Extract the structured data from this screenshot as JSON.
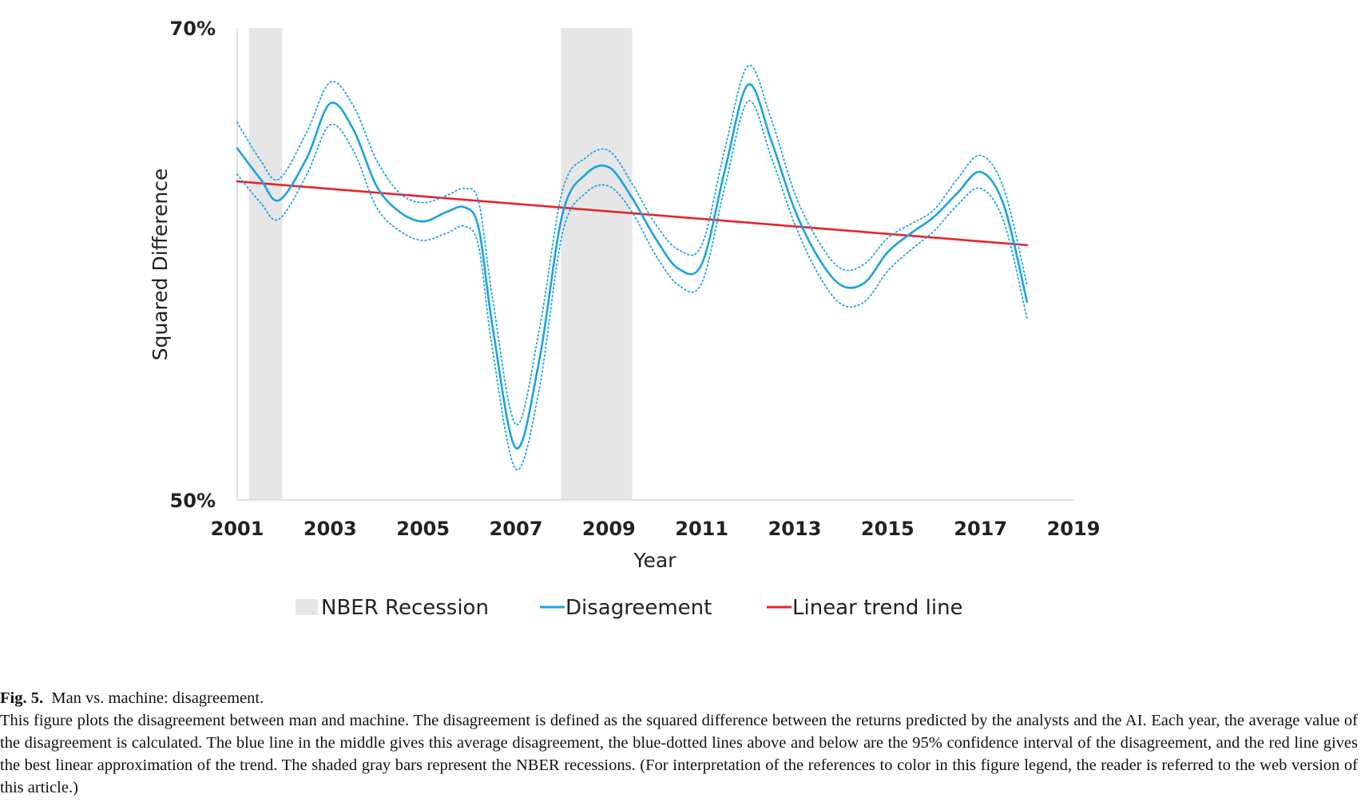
{
  "chart_data": {
    "type": "line",
    "ylabel": "Squared Difference",
    "xlabel": "Year",
    "y_tick_labels": [
      "70%",
      "50%"
    ],
    "ylim": [
      50,
      70
    ],
    "xlim": [
      2001,
      2019
    ],
    "x_tick_labels": [
      "2001",
      "2003",
      "2005",
      "2007",
      "2009",
      "2011",
      "2013",
      "2015",
      "2017",
      "2019"
    ],
    "x_ticks": [
      2001,
      2003,
      2005,
      2007,
      2009,
      2011,
      2013,
      2015,
      2017,
      2019
    ],
    "grid": false,
    "recessions": [
      {
        "start": 2001.25,
        "end": 2001.97
      },
      {
        "start": 2007.97,
        "end": 2009.5
      }
    ],
    "series": [
      {
        "name": "Disagreement",
        "color": "#1aa3e0",
        "style": "solid",
        "x": [
          2001,
          2001.5,
          2001.9,
          2002.5,
          2003,
          2003.5,
          2004,
          2004.5,
          2005,
          2005.5,
          2005.9,
          2006.2,
          2006.5,
          2007,
          2007.5,
          2008,
          2008.5,
          2009,
          2009.5,
          2010,
          2010.5,
          2011,
          2011.5,
          2012,
          2012.5,
          2013,
          2013.5,
          2014,
          2014.5,
          2015,
          2015.5,
          2016,
          2016.5,
          2017,
          2017.5,
          2018
        ],
        "values": [
          64.9,
          63.6,
          62.7,
          64.5,
          66.8,
          65.7,
          63.3,
          62.2,
          61.8,
          62.2,
          62.4,
          61.5,
          57.3,
          52.2,
          55.9,
          62.1,
          63.8,
          64.1,
          62.8,
          61.1,
          59.8,
          60.0,
          64.0,
          67.6,
          65.2,
          62.3,
          60.3,
          59.1,
          59.2,
          60.5,
          61.3,
          62.0,
          63.0,
          63.9,
          62.5,
          58.4
        ]
      },
      {
        "name": "",
        "color": "#1aa3e0",
        "style": "dotted",
        "x": [
          2001,
          2001.5,
          2001.9,
          2002.5,
          2003,
          2003.5,
          2004,
          2004.5,
          2005,
          2005.5,
          2005.9,
          2006.2,
          2006.5,
          2007,
          2007.5,
          2008,
          2008.5,
          2009,
          2009.5,
          2010,
          2010.5,
          2011,
          2011.5,
          2012,
          2012.5,
          2013,
          2013.5,
          2014,
          2014.5,
          2015,
          2015.5,
          2016,
          2016.5,
          2017,
          2017.5,
          2018
        ],
        "values": [
          66.0,
          64.4,
          63.6,
          65.6,
          67.7,
          66.7,
          64.4,
          63.0,
          62.6,
          62.9,
          63.2,
          62.6,
          58.5,
          53.2,
          57.2,
          63.1,
          64.5,
          64.8,
          63.4,
          61.7,
          60.6,
          60.8,
          64.9,
          68.4,
          66.1,
          63.0,
          61.0,
          59.8,
          60.0,
          61.1,
          61.7,
          62.3,
          63.6,
          64.6,
          63.2,
          59.1
        ]
      },
      {
        "name": "",
        "color": "#1aa3e0",
        "style": "dotted",
        "x": [
          2001,
          2001.5,
          2001.9,
          2002.5,
          2003,
          2003.5,
          2004,
          2004.5,
          2005,
          2005.5,
          2005.9,
          2006.2,
          2006.5,
          2007,
          2007.5,
          2008,
          2008.5,
          2009,
          2009.5,
          2010,
          2010.5,
          2011,
          2011.5,
          2012,
          2012.5,
          2013,
          2013.5,
          2014,
          2014.5,
          2015,
          2015.5,
          2016,
          2016.5,
          2017,
          2017.5,
          2018
        ],
        "values": [
          63.8,
          62.6,
          61.9,
          63.8,
          65.9,
          64.8,
          62.4,
          61.4,
          61.0,
          61.3,
          61.6,
          60.7,
          56.3,
          51.3,
          54.7,
          61.3,
          63.0,
          63.3,
          62.2,
          60.4,
          59.1,
          59.2,
          63.3,
          66.9,
          64.5,
          61.7,
          59.6,
          58.3,
          58.4,
          59.7,
          60.6,
          61.4,
          62.5,
          63.2,
          61.8,
          57.7
        ]
      },
      {
        "name": "Linear trend line",
        "color": "#e8232a",
        "style": "solid",
        "x": [
          2001,
          2018
        ],
        "values": [
          63.5,
          60.8
        ]
      }
    ],
    "legend": {
      "position": "bottom",
      "entries": [
        {
          "label": "NBER Recession",
          "kind": "patch",
          "color": "#e6e6e6"
        },
        {
          "label": "Disagreement",
          "kind": "line",
          "color": "#1aa3e0"
        },
        {
          "label": "Linear trend line",
          "kind": "line",
          "color": "#e8232a"
        }
      ]
    }
  },
  "caption": {
    "label": "Fig. 5.",
    "title": "Man vs. machine: disagreement.",
    "body": "This figure plots the disagreement between man and machine. The disagreement is defined as the squared difference between the returns predicted by the analysts and the AI. Each year, the average value of the disagreement is calculated. The blue line in the middle gives this average disagreement, the blue-dotted lines above and below are the 95% confidence interval of the disagreement, and the red line gives the best linear approximation of the trend. The shaded gray bars represent the NBER recessions. (For interpretation of the references to color in this figure legend, the reader is referred to the web version of this article.)"
  }
}
